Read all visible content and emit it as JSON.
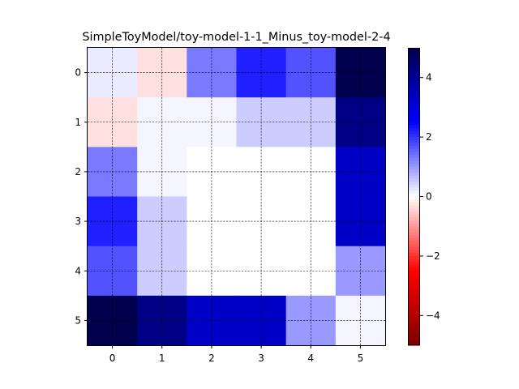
{
  "chart_data": {
    "type": "heatmap",
    "title": "SimpleToyModel/toy-model-1-1_Minus_toy-model-2-4",
    "xlabel": "",
    "ylabel": "",
    "x_ticks": [
      "0",
      "1",
      "2",
      "3",
      "4",
      "5"
    ],
    "y_ticks": [
      "0",
      "1",
      "2",
      "3",
      "4",
      "5"
    ],
    "values": [
      [
        0.2,
        -0.3,
        1.3,
        2.2,
        1.7,
        5.0
      ],
      [
        -0.3,
        0.1,
        0.1,
        0.5,
        0.5,
        4.2
      ],
      [
        1.3,
        0.1,
        0.0,
        0.0,
        0.0,
        3.3
      ],
      [
        2.2,
        0.5,
        0.0,
        0.0,
        0.0,
        3.3
      ],
      [
        1.7,
        0.5,
        0.0,
        0.0,
        0.0,
        1.0
      ],
      [
        5.0,
        4.2,
        3.3,
        3.3,
        1.0,
        0.1
      ]
    ],
    "colormap": "seismic_r",
    "vmin": -5,
    "vmax": 5,
    "colorbar_ticks": [
      "4",
      "2",
      "0",
      "−2",
      "−4"
    ],
    "colorbar_tick_values": [
      4,
      2,
      0,
      -2,
      -4
    ],
    "grid": true,
    "colorbar_position": "right"
  }
}
